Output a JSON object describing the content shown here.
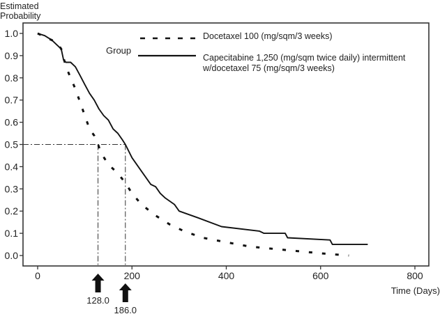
{
  "chart_data": {
    "type": "line",
    "title": "",
    "ylabel": [
      "Estimated",
      "Probability"
    ],
    "xlabel": "Time (Days)",
    "xlim": [
      -20,
      820
    ],
    "ylim": [
      -0.05,
      1.05
    ],
    "x_ticks": [
      0,
      200,
      400,
      600,
      800
    ],
    "x_tick_labels": [
      "0",
      "200",
      "400",
      "600",
      "800"
    ],
    "y_ticks": [
      0.0,
      0.1,
      0.2,
      0.3,
      0.4,
      0.5,
      0.6,
      0.7,
      0.8,
      0.9,
      1.0
    ],
    "y_tick_labels": [
      "0.0",
      "0.1",
      "0.2",
      "0.3",
      "0.4",
      "0.5",
      "0.6",
      "0.7",
      "0.8",
      "0.9",
      "1.0"
    ],
    "grid": false,
    "legend": {
      "title": "Group",
      "placement": "top-right",
      "entries": [
        {
          "label": "Docetaxel 100 (mg/sqm/3 weeks)",
          "style": "dashed"
        },
        {
          "label_lines": [
            "Capecitabine 1,250 (mg/sqm twice daily) intermittent",
            "w/docetaxel 75 (mg/sqm/3 weeks)"
          ],
          "style": "solid"
        }
      ]
    },
    "series": [
      {
        "name": "Docetaxel 100 (mg/sqm/3 weeks)",
        "style": "dashed",
        "x": [
          0,
          20,
          40,
          50,
          60,
          70,
          80,
          90,
          100,
          110,
          120,
          128,
          135,
          150,
          170,
          185,
          200,
          220,
          250,
          280,
          310,
          350,
          400,
          450,
          500,
          550,
          600,
          660
        ],
        "y": [
          1.0,
          0.98,
          0.96,
          0.93,
          0.85,
          0.8,
          0.75,
          0.69,
          0.63,
          0.57,
          0.54,
          0.5,
          0.46,
          0.41,
          0.37,
          0.33,
          0.28,
          0.23,
          0.18,
          0.14,
          0.11,
          0.08,
          0.06,
          0.04,
          0.03,
          0.02,
          0.01,
          0.0
        ]
      },
      {
        "name": "Capecitabine 1,250 (mg/sqm twice daily) intermittent w/docetaxel 75 (mg/sqm/3 weeks)",
        "style": "solid",
        "x": [
          0,
          15,
          30,
          40,
          50,
          55,
          60,
          70,
          80,
          90,
          100,
          110,
          120,
          125,
          130,
          140,
          150,
          160,
          170,
          180,
          186,
          200,
          220,
          240,
          250,
          260,
          270,
          290,
          300,
          340,
          390,
          470,
          480,
          525,
          530,
          620,
          625,
          700
        ],
        "y": [
          1.0,
          0.99,
          0.97,
          0.95,
          0.93,
          0.88,
          0.87,
          0.87,
          0.85,
          0.81,
          0.77,
          0.73,
          0.7,
          0.68,
          0.66,
          0.63,
          0.61,
          0.57,
          0.55,
          0.52,
          0.5,
          0.44,
          0.38,
          0.32,
          0.31,
          0.28,
          0.26,
          0.23,
          0.2,
          0.17,
          0.13,
          0.11,
          0.1,
          0.1,
          0.08,
          0.07,
          0.05,
          0.05
        ]
      }
    ],
    "annotations": [
      {
        "type": "median",
        "x": 128.0,
        "y": 0.5,
        "label": "128.0",
        "series": "Docetaxel 100 (mg/sqm/3 weeks)"
      },
      {
        "type": "median",
        "x": 186.0,
        "y": 0.5,
        "label": "186.0",
        "series": "Capecitabine 1,250 (mg/sqm twice daily) intermittent w/docetaxel 75 (mg/sqm/3 weeks)"
      }
    ]
  }
}
